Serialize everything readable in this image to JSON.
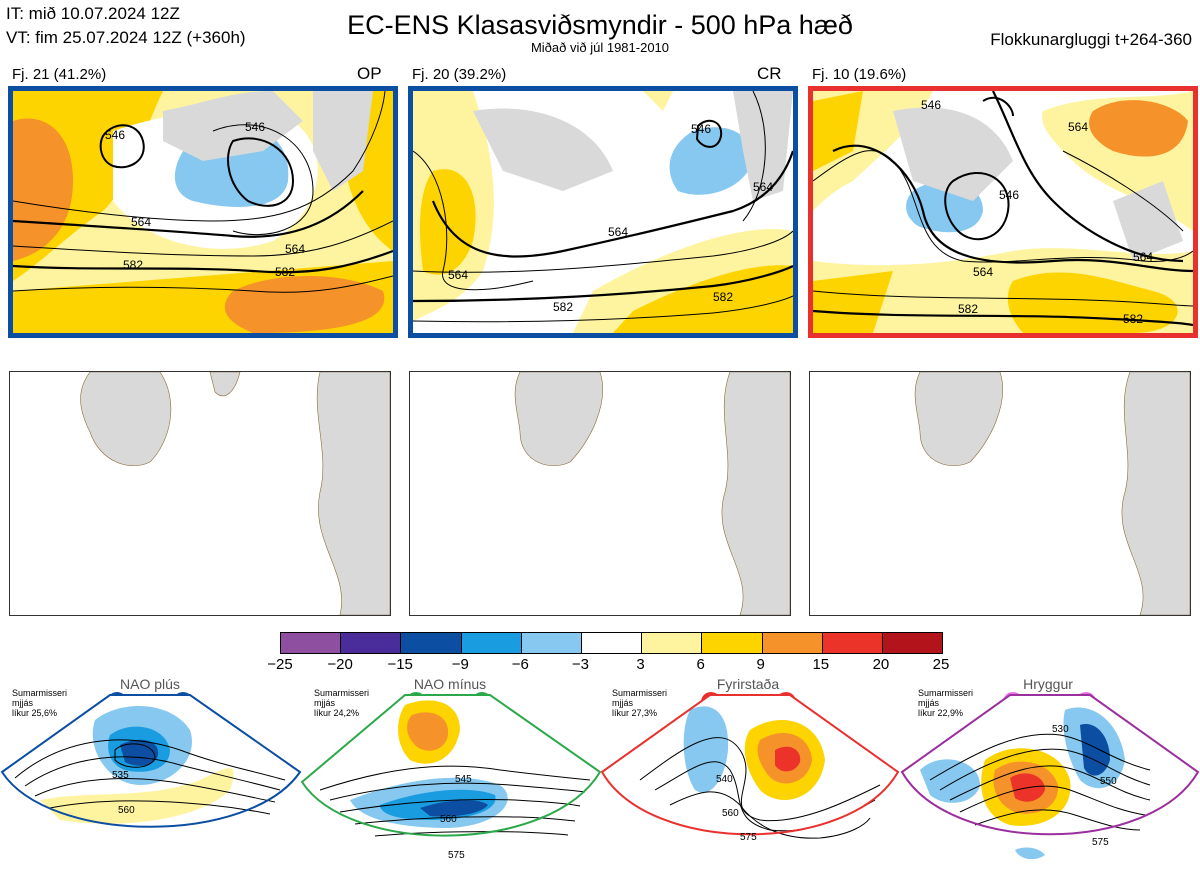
{
  "header": {
    "it": "IT: mið 10.07.2024 12Z",
    "vt": "VT: fim 25.07.2024 12Z  (+360h)",
    "title": "EC-ENS Klasasviðsmyndir - 500 hPa hæð",
    "subtitle": "Miðað við júl 1981-2010",
    "window": "Flokkunargluggi t+264-360"
  },
  "panels": [
    {
      "title": "Fj. 21 (41.2%)",
      "tag": "OP",
      "border_color": "#0b4ea2",
      "labels": [
        "546",
        "546",
        "564",
        "564",
        "582",
        "582"
      ]
    },
    {
      "title": "Fj. 20 (39.2%)",
      "tag": "CR",
      "border_color": "#0b4ea2",
      "labels": [
        "546",
        "564",
        "564",
        "564",
        "582",
        "582"
      ]
    },
    {
      "title": "Fj. 10 (19.6%)",
      "tag": "",
      "border_color": "#e8312f",
      "labels": [
        "546",
        "564",
        "546",
        "564",
        "564",
        "582",
        "582"
      ]
    }
  ],
  "colorbar": {
    "ticks": [
      "−25",
      "−20",
      "−15",
      "−9",
      "−6",
      "−3",
      "3",
      "6",
      "9",
      "15",
      "20",
      "25"
    ],
    "colors": [
      "#8e4fa0",
      "#4a2d9a",
      "#0b4ea2",
      "#1a9ce0",
      "#86c8ef",
      "#ffffff",
      "#fef4a0",
      "#fdd400",
      "#f5922a",
      "#ec3329",
      "#b3141c"
    ]
  },
  "regimes": [
    {
      "name": "NAO plús",
      "meta": "Sumarmisseri\nmjjás\nlíkur 25,6%",
      "color": "#0b4ea2",
      "labels": [
        "535",
        "560"
      ]
    },
    {
      "name": "NAO mínus",
      "meta": "Sumarmisseri\nmjjás\nlíkur 24,2%",
      "color": "#2ba84a",
      "labels": [
        "545",
        "560",
        "575"
      ]
    },
    {
      "name": "Fyrirstaða",
      "meta": "Sumarmisseri\nmjjás\nlíkur 27,3%",
      "color": "#e8312f",
      "labels": [
        "540",
        "560",
        "575"
      ]
    },
    {
      "name": "Hryggur",
      "meta": "Sumarmisseri\nmjjás\nlíkur 22,9%",
      "color": "#9b2f9e",
      "labels": [
        "530",
        "550",
        "575"
      ]
    }
  ]
}
